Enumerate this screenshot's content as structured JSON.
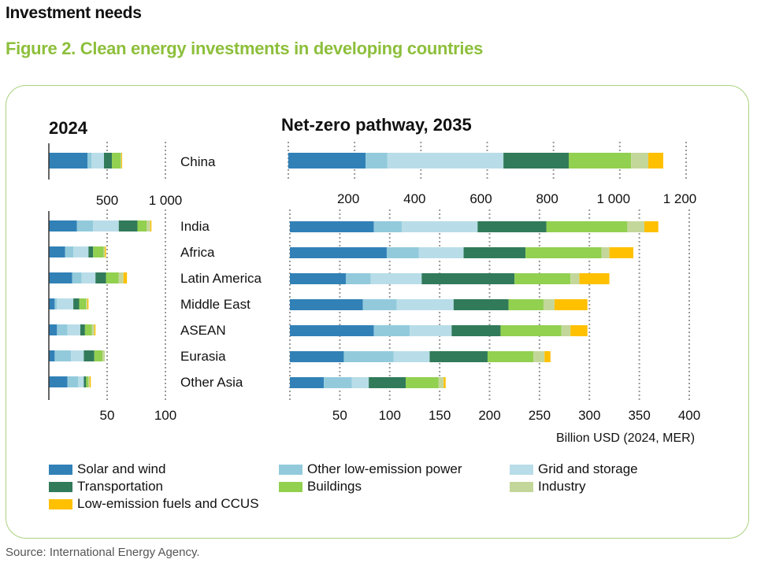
{
  "header": {
    "section_title": "Investment needs",
    "figure_title": "Figure 2. Clean energy investments in developing countries"
  },
  "source": "Source: International Energy Agency.",
  "chart_data": {
    "type": "bar",
    "orientation": "horizontal",
    "stacked": true,
    "unit_label": "Billion USD (2024, MER)",
    "panels": {
      "left_title": "2024",
      "right_title": "Net-zero pathway, 2035"
    },
    "series_names": [
      "Solar and wind",
      "Other low-emission power",
      "Grid and storage",
      "Transportation",
      "Buildings",
      "Industry",
      "Low-emission fuels and CCUS"
    ],
    "colors": [
      "#3181b7",
      "#92cadc",
      "#b8dde8",
      "#317b5a",
      "#92d050",
      "#c4d79b",
      "#ffc000"
    ],
    "china": {
      "category": "China",
      "axis_2024": {
        "range": [
          0,
          1000
        ],
        "ticks": [
          500,
          1000
        ],
        "tick_labels": [
          "500",
          "1 000"
        ]
      },
      "axis_2035": {
        "range": [
          0,
          1200
        ],
        "ticks": [
          200,
          400,
          600,
          800,
          1000,
          1200
        ],
        "tick_labels": [
          "200",
          "400",
          "600",
          "800",
          "1 000",
          "1 200"
        ]
      },
      "values_2024": [
        331,
        34,
        108,
        68,
        74,
        7,
        7
      ],
      "values_2035": [
        233,
        66,
        350,
        197,
        188,
        52,
        45
      ]
    },
    "regions": {
      "categories": [
        "India",
        "Africa",
        "Latin America",
        "Middle East",
        "ASEAN",
        "Eurasia",
        "Other Asia"
      ],
      "axis_2024": {
        "range": [
          0,
          100
        ],
        "ticks": [
          50,
          100
        ],
        "tick_labels": [
          "50",
          "100"
        ]
      },
      "axis_2035": {
        "range": [
          0,
          400
        ],
        "ticks": [
          50,
          100,
          150,
          200,
          250,
          300,
          350,
          400
        ],
        "tick_labels": [
          "50",
          "100",
          "150",
          "200",
          "250",
          "300",
          "350",
          "400"
        ]
      },
      "values_2024": [
        [
          24,
          14,
          22,
          16,
          8,
          3,
          1
        ],
        [
          14,
          7,
          13,
          4,
          9,
          1,
          1
        ],
        [
          20,
          8,
          12,
          9,
          11,
          4,
          3
        ],
        [
          5,
          2,
          14,
          5,
          6,
          1,
          1
        ],
        [
          7,
          9,
          11,
          4,
          6,
          2,
          1
        ],
        [
          5,
          14,
          11,
          9,
          7,
          2,
          0
        ],
        [
          16,
          9,
          5,
          2,
          2,
          1,
          1
        ]
      ],
      "values_2035": [
        [
          84,
          28,
          76,
          69,
          81,
          17,
          14
        ],
        [
          97,
          32,
          45,
          62,
          76,
          8,
          24
        ],
        [
          56,
          25,
          51,
          93,
          56,
          9,
          30
        ],
        [
          73,
          34,
          57,
          55,
          35,
          11,
          33
        ],
        [
          84,
          36,
          42,
          49,
          61,
          9,
          17
        ],
        [
          54,
          50,
          36,
          58,
          46,
          11,
          6
        ],
        [
          34,
          28,
          17,
          37,
          33,
          5,
          2
        ]
      ]
    },
    "grid": "dotted-vertical",
    "legend_position": "bottom"
  }
}
